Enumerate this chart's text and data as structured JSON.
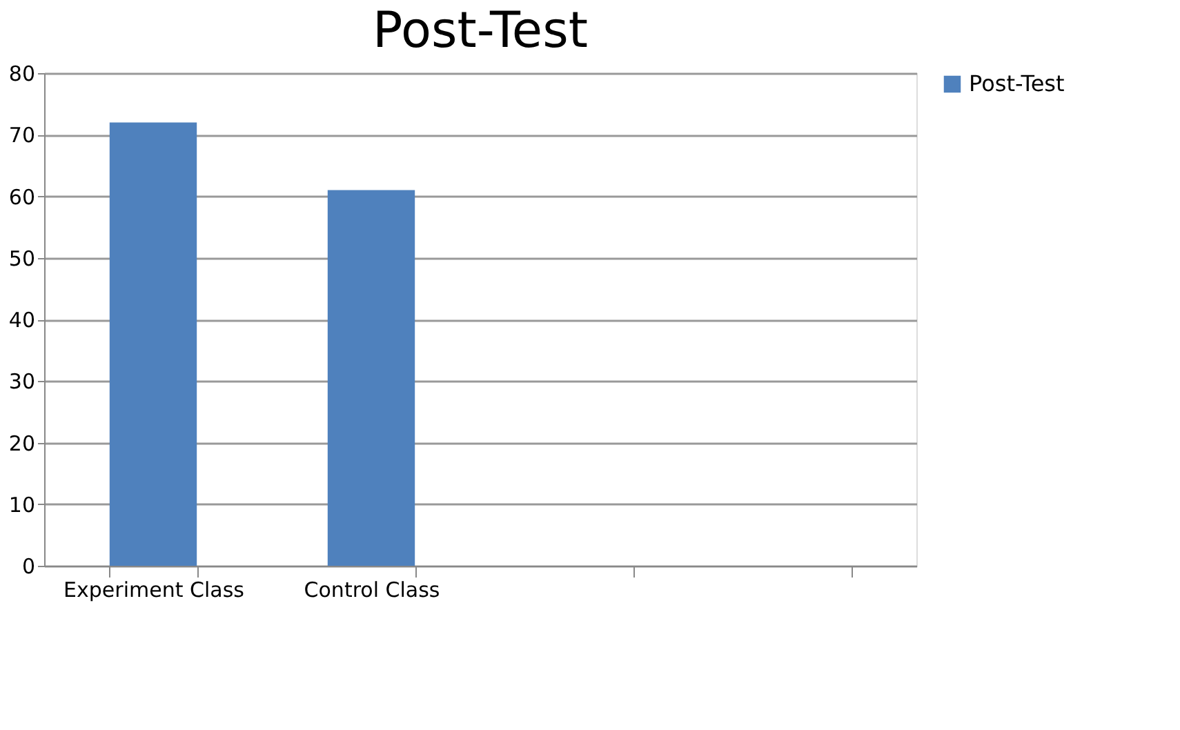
{
  "chart_data": {
    "type": "bar",
    "title": "Post-Test",
    "categories": [
      "Experiment Class",
      "Control Class",
      null,
      null
    ],
    "series": [
      {
        "name": "Post-Test",
        "color": "#4f81bd",
        "values": [
          72,
          61,
          null,
          null
        ]
      }
    ],
    "ylim": [
      0,
      80
    ],
    "yticks": [
      0,
      10,
      20,
      30,
      40,
      50,
      60,
      70,
      80
    ],
    "grid": "y",
    "legend": "right"
  }
}
